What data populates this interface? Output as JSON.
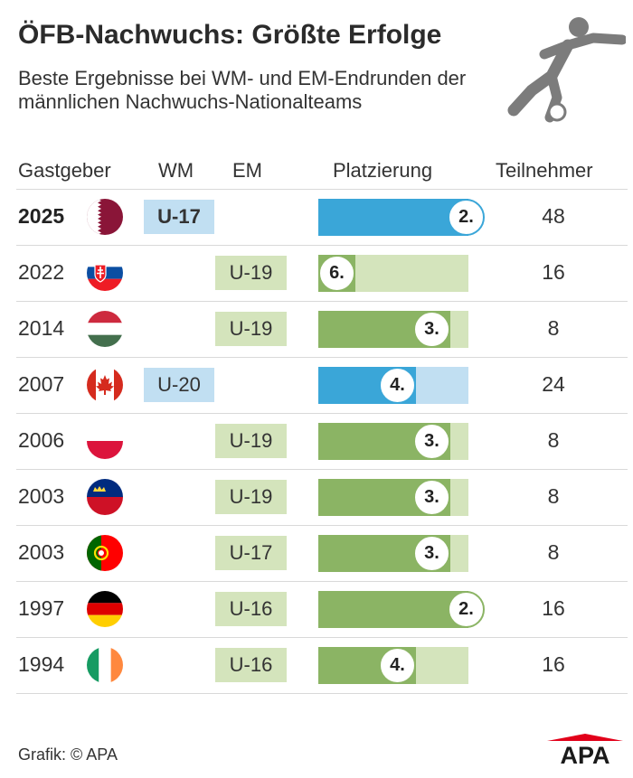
{
  "header": {
    "title": "ÖFB-Nachwuchs: Größte Erfolge",
    "subtitle": "Beste Ergebnisse bei WM- und EM-Endrunden der männlichen Nachwuchs-Nationalteams"
  },
  "columns": {
    "host": "Gastgeber",
    "wm": "WM",
    "em": "EM",
    "placement": "Platzierung",
    "participants": "Teilnehmer"
  },
  "colors": {
    "wm_dark": "#3aa6d8",
    "wm_light": "#c1dff2",
    "em_dark": "#8bb464",
    "em_light": "#d4e4bc",
    "icon_gray": "#7c7c7c",
    "apa_red": "#e2001a"
  },
  "chart_data": {
    "type": "table",
    "title": "ÖFB-Nachwuchs: Größte Erfolge",
    "subtitle": "Beste Ergebnisse bei WM- und EM-Endrunden der männlichen Nachwuchs-Nationalteams",
    "rows": [
      {
        "year": "2025",
        "host_flag": "qatar-flag",
        "tournament": "WM",
        "team": "U-17",
        "placement": 2,
        "placement_label": "2.",
        "participants": 48,
        "participants_label": "48",
        "highlight": true
      },
      {
        "year": "2022",
        "host_flag": "slovakia-flag",
        "tournament": "EM",
        "team": "U-19",
        "placement": 6,
        "placement_label": "6.",
        "participants": 16,
        "participants_label": "16",
        "highlight": false
      },
      {
        "year": "2014",
        "host_flag": "hungary-flag",
        "tournament": "EM",
        "team": "U-19",
        "placement": 3,
        "placement_label": "3.",
        "participants": 8,
        "participants_label": "8",
        "highlight": false
      },
      {
        "year": "2007",
        "host_flag": "canada-flag",
        "tournament": "WM",
        "team": "U-20",
        "placement": 4,
        "placement_label": "4.",
        "participants": 24,
        "participants_label": "24",
        "highlight": false
      },
      {
        "year": "2006",
        "host_flag": "poland-flag",
        "tournament": "EM",
        "team": "U-19",
        "placement": 3,
        "placement_label": "3.",
        "participants": 8,
        "participants_label": "8",
        "highlight": false
      },
      {
        "year": "2003",
        "host_flag": "liechtenstein-flag",
        "tournament": "EM",
        "team": "U-19",
        "placement": 3,
        "placement_label": "3.",
        "participants": 8,
        "participants_label": "8",
        "highlight": false
      },
      {
        "year": "2003",
        "host_flag": "portugal-flag",
        "tournament": "EM",
        "team": "U-17",
        "placement": 3,
        "placement_label": "3.",
        "participants": 8,
        "participants_label": "8",
        "highlight": false
      },
      {
        "year": "1997",
        "host_flag": "germany-flag",
        "tournament": "EM",
        "team": "U-16",
        "placement": 2,
        "placement_label": "2.",
        "participants": 16,
        "participants_label": "16",
        "highlight": false
      },
      {
        "year": "1994",
        "host_flag": "ireland-flag",
        "tournament": "EM",
        "team": "U-16",
        "placement": 4,
        "placement_label": "4.",
        "participants": 16,
        "participants_label": "16",
        "highlight": false
      }
    ]
  },
  "footer": {
    "credit": "Grafik: © APA",
    "logo_text": "APA"
  }
}
